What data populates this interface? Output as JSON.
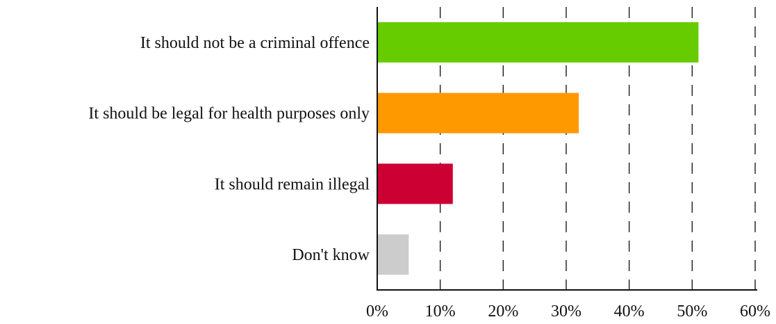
{
  "chart_data": {
    "type": "bar",
    "orientation": "horizontal",
    "categories": [
      "It should not be a criminal offence",
      "It should be legal for health purposes only",
      "It should remain illegal",
      "Don't know"
    ],
    "values": [
      51,
      32,
      12,
      5
    ],
    "colors": [
      "#66cc00",
      "#ff9900",
      "#cc0033",
      "#cccccc"
    ],
    "xlim": [
      0,
      60
    ],
    "ticks": [
      0,
      10,
      20,
      30,
      40,
      50,
      60
    ],
    "tick_labels": [
      "0%",
      "10%",
      "20%",
      "30%",
      "40%",
      "50%",
      "60%"
    ],
    "grid": "vertical dashed",
    "legend": "none"
  }
}
